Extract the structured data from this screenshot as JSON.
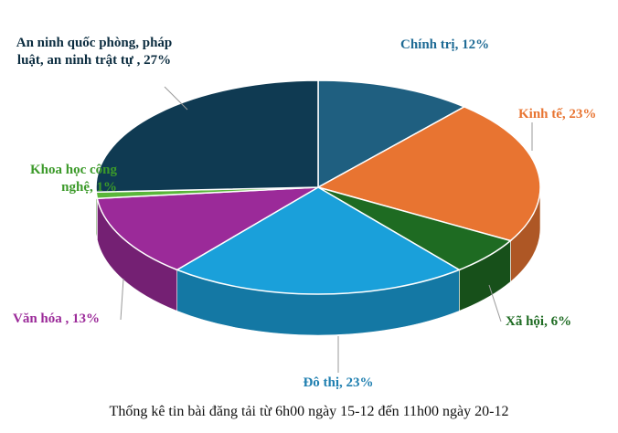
{
  "chart_data": {
    "type": "pie3d",
    "title": "Thống kê tin bài đăng tải từ 6h00 ngày 15-12 đến 11h00 ngày 20-12",
    "values": [
      12,
      23,
      6,
      23,
      13,
      1,
      27
    ],
    "value_labels": [
      "Chính trị, 12%",
      "Kinh tế, 23%",
      "Xã hội, 6%",
      "Đô thị, 23%",
      "Văn hóa , 13%",
      "Khoa học công nghệ, 1%",
      "An ninh quốc phòng, pháp luật, an ninh trật tự , 27%"
    ],
    "colors": [
      "#1f5f80",
      "#e87431",
      "#1e6b22",
      "#1aa0da",
      "#9b2a99",
      "#5ab63a",
      "#0f3a52"
    ],
    "label_colors": [
      "#1f6b95",
      "#e87431",
      "#1e6b22",
      "#1f7fb0",
      "#9b2a99",
      "#3c9a2a",
      "#0c2d40"
    ]
  }
}
